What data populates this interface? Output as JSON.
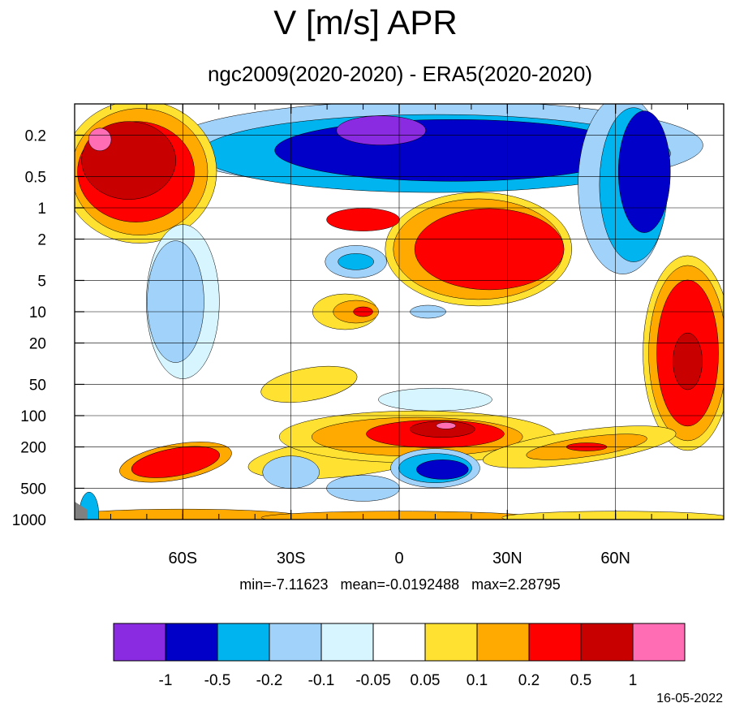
{
  "title": "V [m/s] APR",
  "subtitle": "ngc2009(2020-2020) - ERA5(2020-2020)",
  "stats": {
    "min_label": "min=-7.11623",
    "mean_label": "mean=-0.0192488",
    "max_label": "max=2.28795"
  },
  "date": "16-05-2022",
  "chart_data": {
    "type": "heatmap",
    "title": "V [m/s] APR",
    "subtitle": "ngc2009(2020-2020) - ERA5(2020-2020)",
    "xlabel": "",
    "ylabel": "",
    "x_ticks": [
      "60S",
      "30S",
      "0",
      "30N",
      "60N"
    ],
    "x_tick_values": [
      -60,
      -30,
      0,
      30,
      60
    ],
    "xlim": [
      -90,
      90
    ],
    "y_ticks": [
      "0.2",
      "0.5",
      "1",
      "2",
      "5",
      "10",
      "20",
      "50",
      "100",
      "200",
      "500",
      "1000"
    ],
    "y_tick_values": [
      0.2,
      0.5,
      1,
      2,
      5,
      10,
      20,
      50,
      100,
      200,
      500,
      1000
    ],
    "ylim": [
      1000,
      0.1
    ],
    "y_scale": "log",
    "grid": true,
    "colorbar": {
      "levels": [
        "-1",
        "-0.5",
        "-0.2",
        "-0.1",
        "-0.05",
        "0.05",
        "0.1",
        "0.2",
        "0.5",
        "1"
      ],
      "colors": [
        "#8a2be2",
        "#0000c8",
        "#00b4f0",
        "#a0d2fa",
        "#d7f5ff",
        "#ffffff",
        "#ffe132",
        "#ffaa00",
        "#ff0000",
        "#c80000",
        "#ff6eb4"
      ]
    },
    "min": -7.11623,
    "mean": -0.0192488,
    "max": 2.28795
  }
}
